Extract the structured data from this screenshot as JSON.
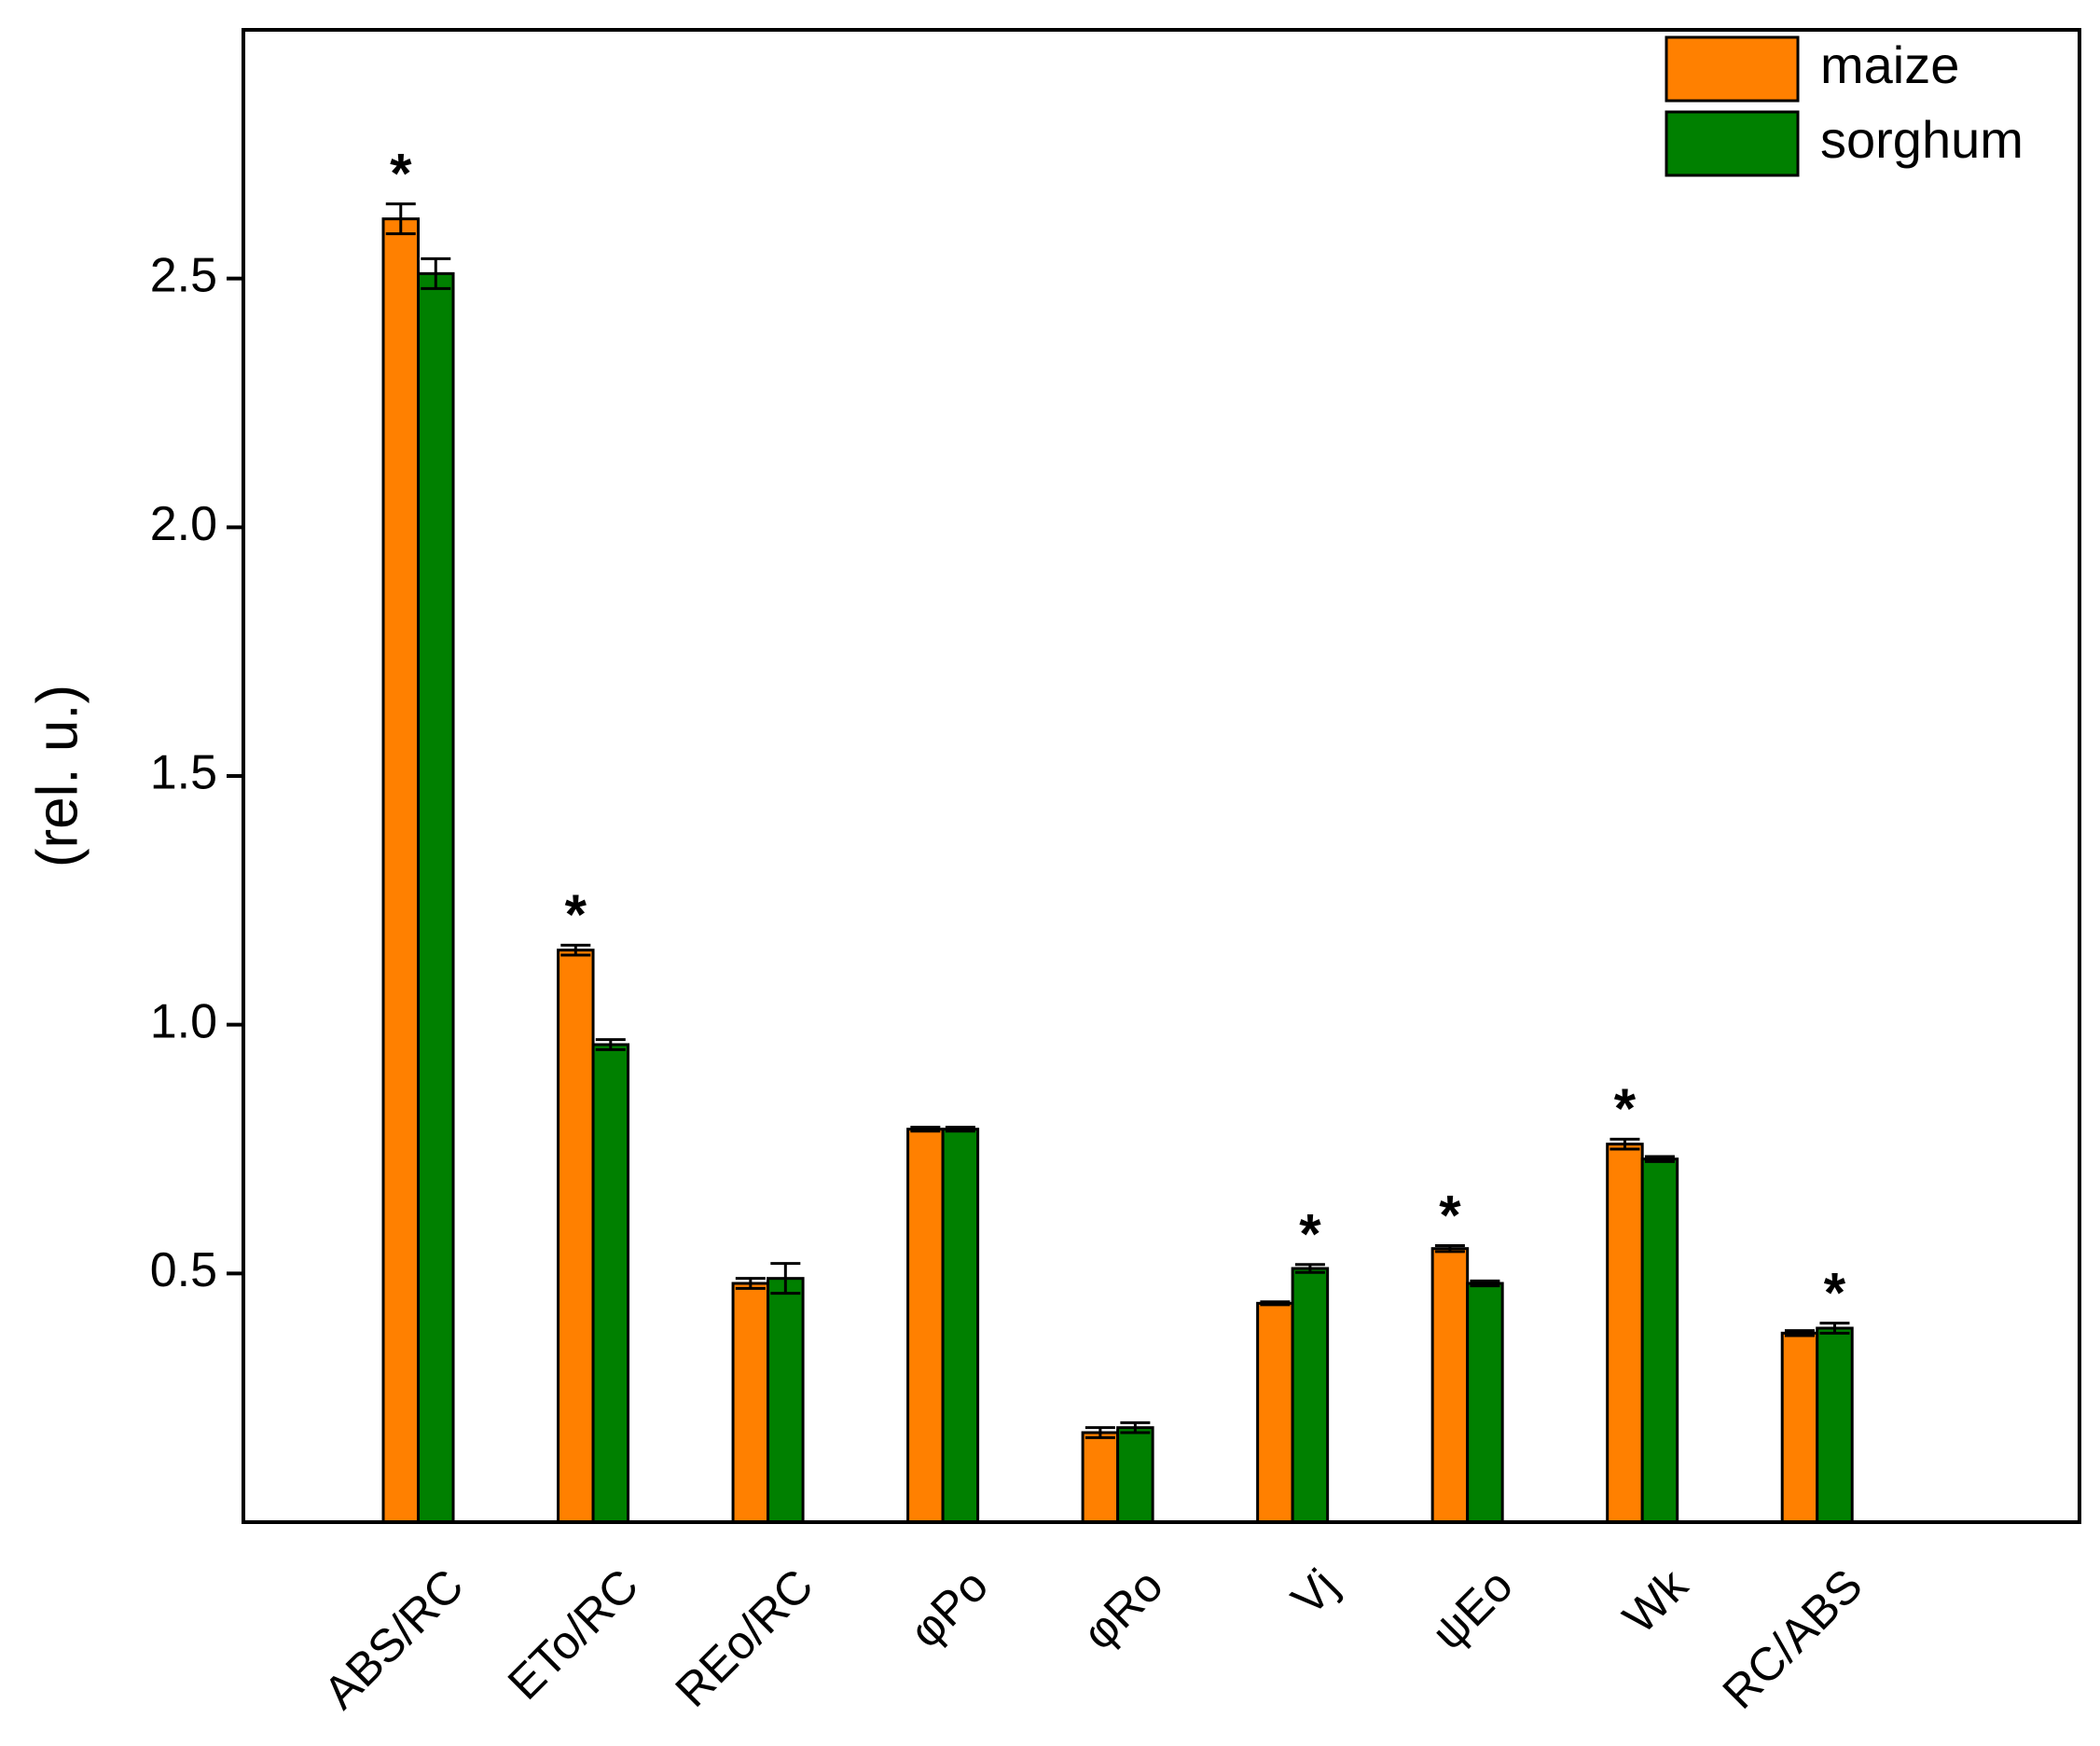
{
  "chart_data": {
    "type": "bar",
    "y_label": "(rel. u.)",
    "categories": [
      "ABS/RC",
      "ETo/RC",
      "REo/RC",
      "φPo",
      "φRo",
      "Vj",
      "ψEo",
      "Wk",
      "RC/ABS"
    ],
    "series": [
      {
        "name": "maize",
        "color": "#ff8000",
        "values": [
          2.62,
          1.15,
          0.48,
          0.79,
          0.18,
          0.44,
          0.55,
          0.76,
          0.38
        ],
        "errors": [
          0.03,
          0.01,
          0.01,
          0.004,
          0.01,
          0.003,
          0.006,
          0.01,
          0.005
        ],
        "annotations": [
          "*",
          "*",
          null,
          null,
          null,
          null,
          "*",
          "*",
          null
        ]
      },
      {
        "name": "sorghum",
        "color": "#008000",
        "values": [
          2.51,
          0.96,
          0.49,
          0.79,
          0.19,
          0.51,
          0.48,
          0.73,
          0.39
        ],
        "errors": [
          0.03,
          0.01,
          0.03,
          0.004,
          0.01,
          0.008,
          0.005,
          0.005,
          0.01
        ],
        "annotations": [
          null,
          null,
          null,
          null,
          null,
          "*",
          null,
          null,
          "*"
        ]
      }
    ],
    "ylim": [
      0,
      3
    ],
    "yticks": [
      0.5,
      {
        "value": 1,
        "label": "1.0"
      },
      1.5,
      {
        "value": 2,
        "label": "2.0"
      },
      2.5
    ],
    "legend": "upper right"
  }
}
